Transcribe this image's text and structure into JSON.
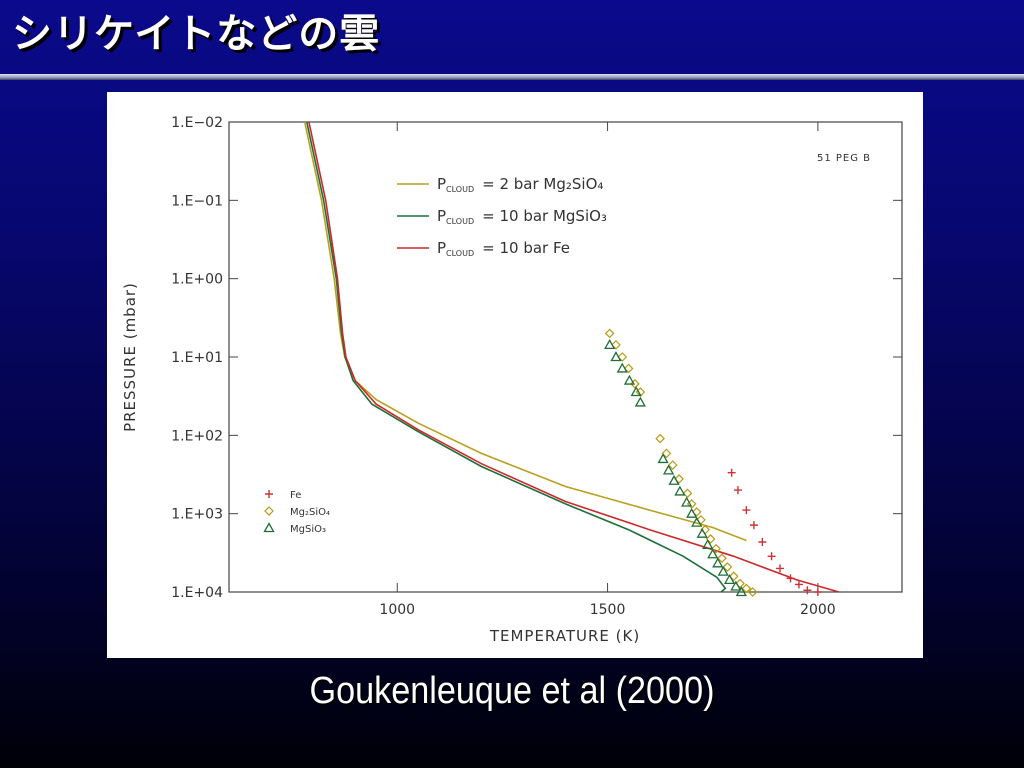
{
  "slide": {
    "title": "シリケイトなどの雲",
    "caption": "Goukenleuque et al (2000)"
  },
  "chart_data": {
    "type": "line",
    "xlabel": "TEMPERATURE (K)",
    "ylabel": "PRESSURE (mbar)",
    "xlim": [
      600,
      2200
    ],
    "ylim": [
      0.01,
      10000
    ],
    "y_scale": "log",
    "y_inverted": true,
    "grid": false,
    "x_ticks": [
      {
        "value": 1000,
        "label": "1000"
      },
      {
        "value": 1500,
        "label": "1500"
      },
      {
        "value": 2000,
        "label": "2000"
      }
    ],
    "y_ticks": [
      {
        "value": 0.01,
        "label": "1.E−02"
      },
      {
        "value": 0.1,
        "label": "1.E−01"
      },
      {
        "value": 1,
        "label": "1.E+00"
      },
      {
        "value": 10,
        "label": "1.E+01"
      },
      {
        "value": 100,
        "label": "1.E+02"
      },
      {
        "value": 1000,
        "label": "1.E+03"
      },
      {
        "value": 10000,
        "label": "1.E+04"
      }
    ],
    "annotation": "51 PEG B",
    "series": [
      {
        "label": "P",
        "subscript": "CLOUD",
        "rest": "= 2 bar Mg₂SiO₄",
        "color": "#b8a020",
        "points": [
          [
            780,
            0.01
          ],
          [
            820,
            0.1
          ],
          [
            850,
            1
          ],
          [
            865,
            5
          ],
          [
            875,
            10
          ],
          [
            900,
            20
          ],
          [
            950,
            35
          ],
          [
            1050,
            70
          ],
          [
            1200,
            170
          ],
          [
            1400,
            450
          ],
          [
            1600,
            900
          ],
          [
            1750,
            1500
          ],
          [
            1830,
            2200
          ]
        ]
      },
      {
        "label": "P",
        "subscript": "CLOUD",
        "rest": "= 10 bar MgSiO₃",
        "color": "#1e6e3a",
        "points": [
          [
            785,
            0.01
          ],
          [
            825,
            0.1
          ],
          [
            855,
            1
          ],
          [
            868,
            5
          ],
          [
            876,
            10
          ],
          [
            895,
            20
          ],
          [
            940,
            40
          ],
          [
            1050,
            90
          ],
          [
            1200,
            250
          ],
          [
            1400,
            750
          ],
          [
            1550,
            1600
          ],
          [
            1680,
            3500
          ],
          [
            1760,
            6500
          ],
          [
            1780,
            9000
          ],
          [
            1770,
            10000
          ]
        ]
      },
      {
        "label": "P",
        "subscript": "CLOUD",
        "rest": "= 10 bar Fe",
        "color": "#cc2a2a",
        "points": [
          [
            790,
            0.01
          ],
          [
            830,
            0.1
          ],
          [
            858,
            1
          ],
          [
            870,
            5
          ],
          [
            878,
            10
          ],
          [
            900,
            20
          ],
          [
            950,
            40
          ],
          [
            1050,
            85
          ],
          [
            1200,
            230
          ],
          [
            1400,
            700
          ],
          [
            1600,
            1600
          ],
          [
            1800,
            3500
          ],
          [
            1950,
            7000
          ],
          [
            2050,
            10000
          ]
        ]
      }
    ],
    "condensation_curves": [
      {
        "name": "Fe",
        "marker": "plus",
        "color": "#cc3333",
        "points": [
          [
            1795,
            300
          ],
          [
            1810,
            500
          ],
          [
            1830,
            900
          ],
          [
            1848,
            1400
          ],
          [
            1868,
            2300
          ],
          [
            1890,
            3500
          ],
          [
            1910,
            5000
          ],
          [
            1935,
            6700
          ],
          [
            1955,
            8000
          ],
          [
            1975,
            9500
          ],
          [
            2000,
            10000
          ]
        ]
      },
      {
        "name": "Mg₂SiO₄",
        "marker": "diamond",
        "color": "#b89a10",
        "points": [
          [
            1505,
            5
          ],
          [
            1520,
            7
          ],
          [
            1535,
            10
          ],
          [
            1550,
            14
          ],
          [
            1565,
            22
          ],
          [
            1578,
            28
          ],
          [
            1625,
            110
          ],
          [
            1640,
            170
          ],
          [
            1655,
            240
          ],
          [
            1670,
            360
          ],
          [
            1690,
            550
          ],
          [
            1700,
            750
          ],
          [
            1712,
            950
          ],
          [
            1722,
            1200
          ],
          [
            1732,
            1600
          ],
          [
            1745,
            2100
          ],
          [
            1758,
            2800
          ],
          [
            1772,
            3700
          ],
          [
            1785,
            4800
          ],
          [
            1800,
            6300
          ],
          [
            1815,
            7800
          ],
          [
            1830,
            9000
          ],
          [
            1845,
            10000
          ]
        ]
      },
      {
        "name": "MgSiO₃",
        "marker": "triangle",
        "color": "#1e6e3a",
        "points": [
          [
            1505,
            7
          ],
          [
            1520,
            10
          ],
          [
            1535,
            14
          ],
          [
            1552,
            20
          ],
          [
            1568,
            28
          ],
          [
            1578,
            38
          ],
          [
            1632,
            200
          ],
          [
            1645,
            280
          ],
          [
            1658,
            380
          ],
          [
            1672,
            520
          ],
          [
            1688,
            720
          ],
          [
            1700,
            1000
          ],
          [
            1712,
            1300
          ],
          [
            1725,
            1800
          ],
          [
            1738,
            2500
          ],
          [
            1750,
            3300
          ],
          [
            1762,
            4300
          ],
          [
            1775,
            5500
          ],
          [
            1790,
            7000
          ],
          [
            1805,
            8500
          ],
          [
            1818,
            10000
          ]
        ]
      }
    ]
  }
}
